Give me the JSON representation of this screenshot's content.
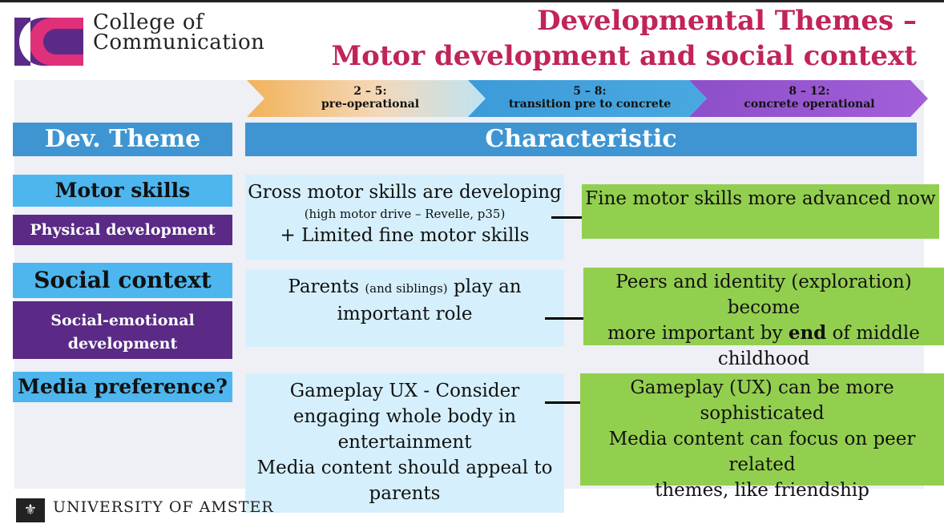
{
  "college": {
    "line1": "College of",
    "line2": "Communication"
  },
  "title": {
    "line1": "Developmental Themes –",
    "line2": "Motor development and social context"
  },
  "stages": [
    {
      "range": "2 – 5:",
      "label": "pre-operational"
    },
    {
      "range": "5 – 8:",
      "label": "transition pre to concrete"
    },
    {
      "range": "8 – 12:",
      "label": "concrete operational"
    }
  ],
  "headers": {
    "theme": "Dev. Theme",
    "characteristic": "Characteristic"
  },
  "rows": {
    "motor": {
      "theme": "Motor skills",
      "subtheme": "Physical development",
      "early_line1": "Gross motor skills are developing",
      "early_note": "(high motor drive – Revelle, p35)",
      "early_line3": "+ Limited fine motor skills",
      "later": "Fine motor skills more advanced now"
    },
    "social": {
      "theme": "Social context",
      "subtheme_line1": "Social-emotional",
      "subtheme_line2": "development",
      "early_a": "Parents",
      "early_b": "(and siblings)",
      "early_c": "play an",
      "early_line2": "important role",
      "later_line1": "Peers and identity (exploration) become",
      "later_a": "more important by",
      "later_b": "end",
      "later_c": "of middle",
      "later_line3": "childhood"
    },
    "media": {
      "theme": "Media preference?",
      "early_line1": "Gameplay UX - Consider",
      "early_line2": "engaging whole body in",
      "early_line3": "entertainment",
      "early_line4": "Media content should appeal to",
      "early_line5": "parents",
      "later_line1": "Gameplay (UX) can be more",
      "later_line2": "sophisticated",
      "later_line3": "Media content can focus on peer related",
      "later_line4": "themes, like friendship"
    }
  },
  "footer": {
    "university": "UNIVERSITY OF AMSTER"
  },
  "colors": {
    "title": "#c0245a",
    "blue": "#3e95d2",
    "theme_blue": "#4db6ee",
    "purple": "#5a2a86",
    "light": "#d5f0fc",
    "green": "#93cf4f"
  }
}
